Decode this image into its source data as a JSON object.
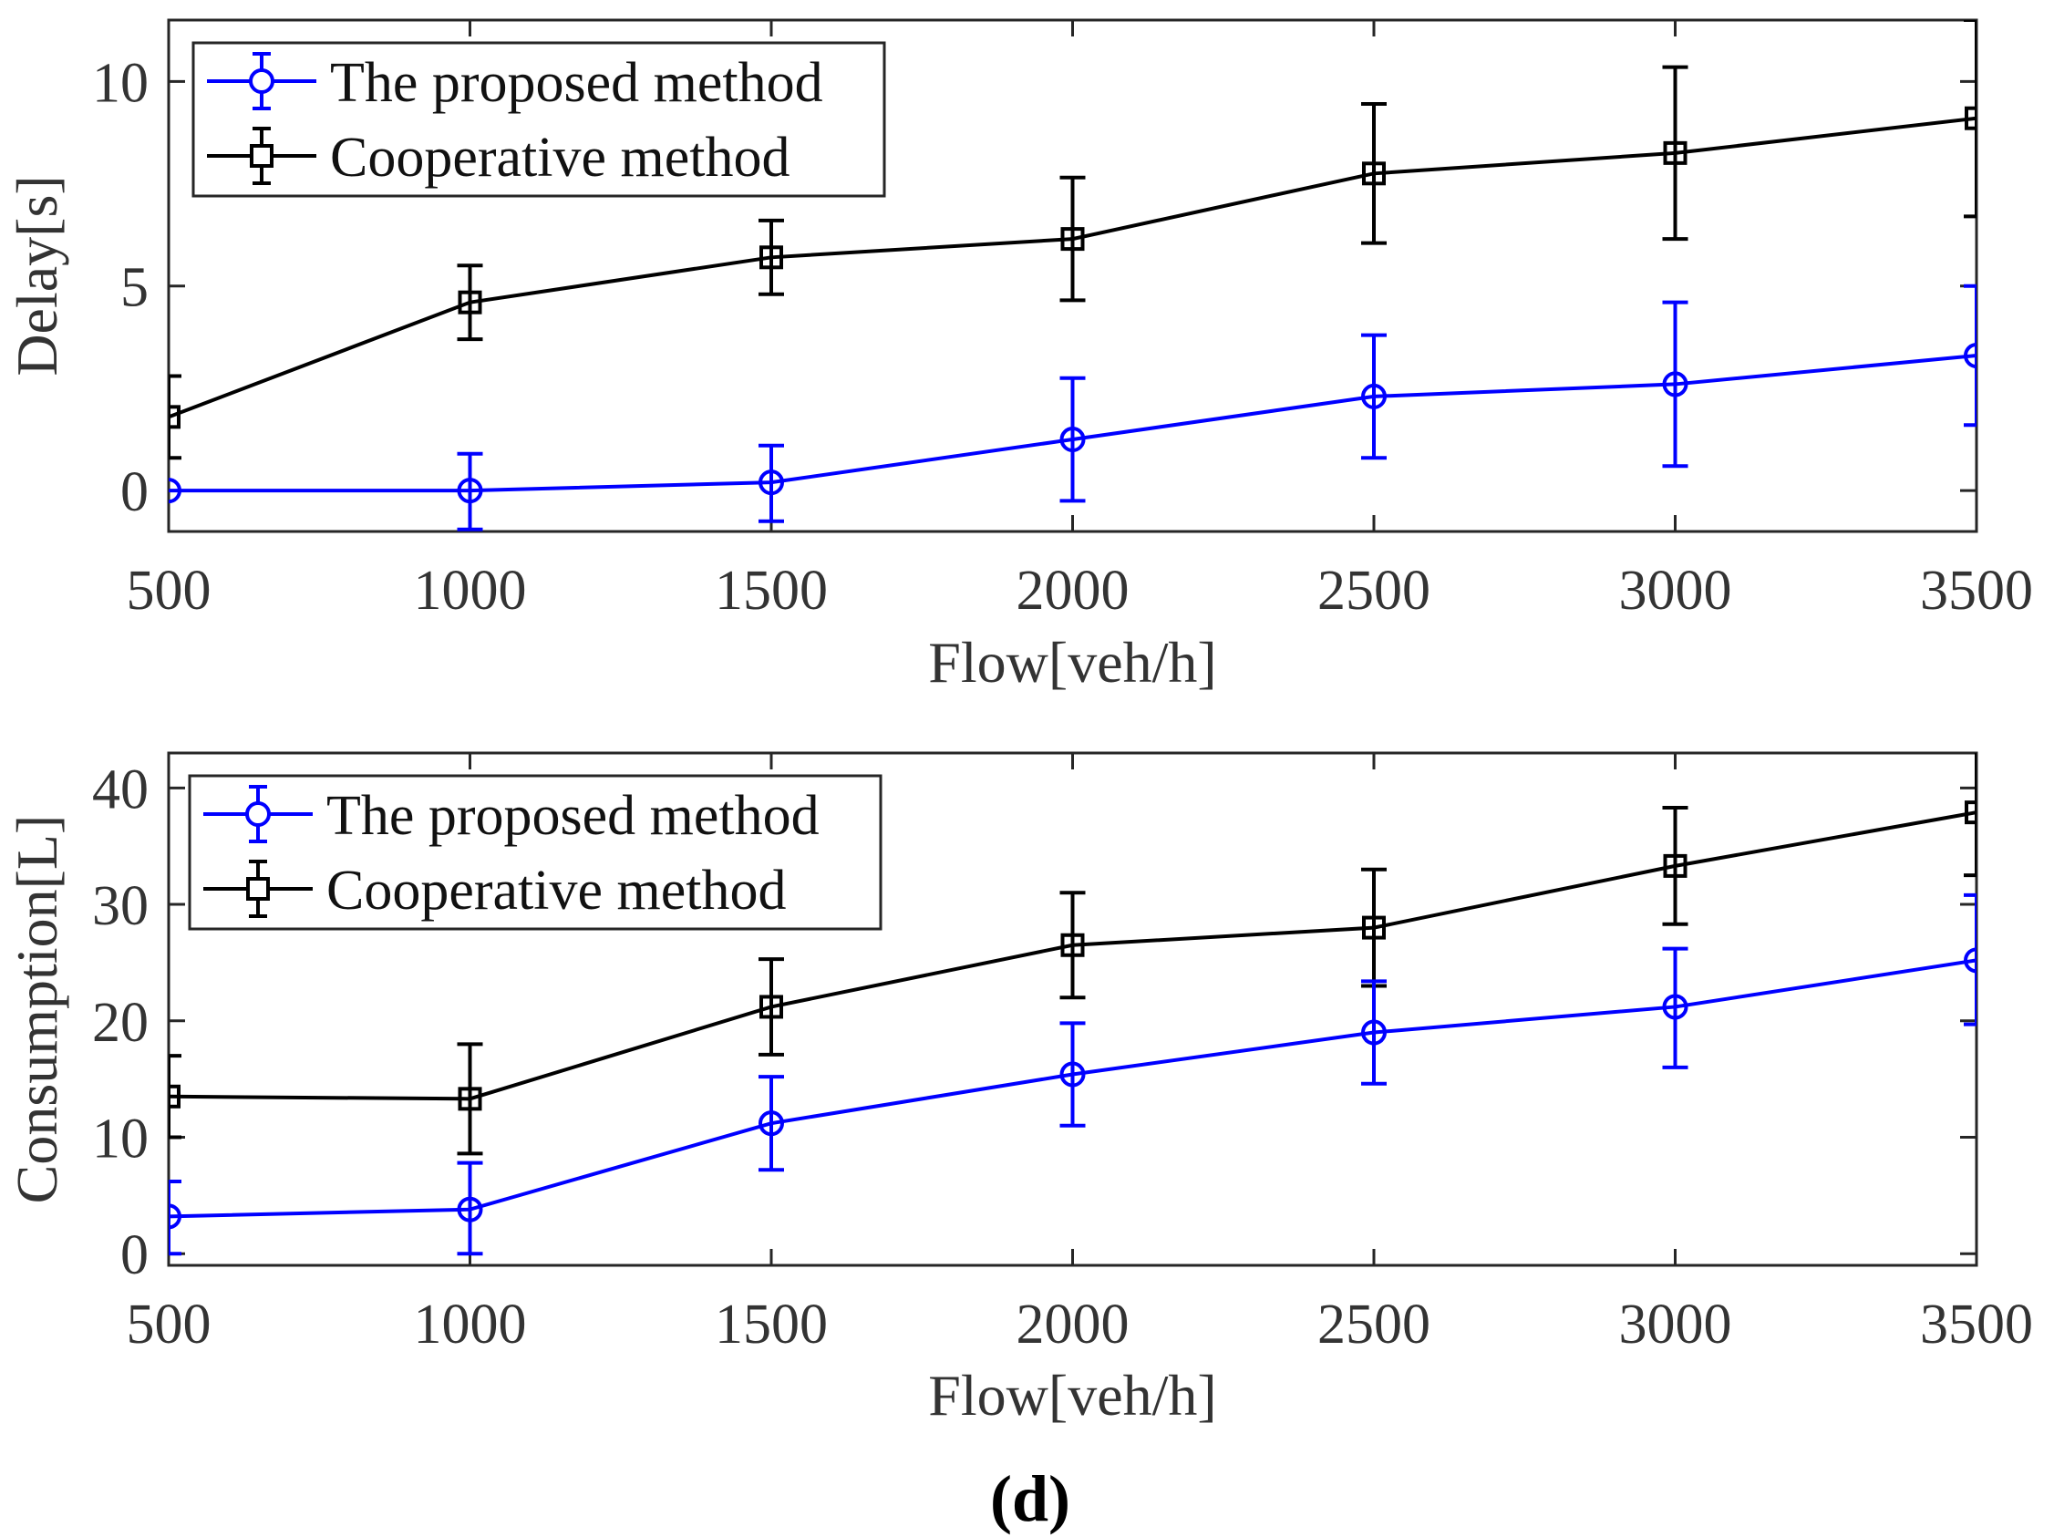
{
  "figure_label": "(d)",
  "colors": {
    "proposed": "#0000ff",
    "cooperative": "#000000",
    "axis": "#262626",
    "text": "#333333"
  },
  "chart_data": [
    {
      "type": "line",
      "error_bars": true,
      "xlabel": "Flow[veh/h]",
      "ylabel": "Delay[s]",
      "xlim": [
        500,
        3500
      ],
      "ylim": [
        -1,
        11.5
      ],
      "xticks": [
        500,
        1000,
        1500,
        2000,
        2500,
        3000,
        3500
      ],
      "xtick_labels": [
        "500",
        "1000",
        "1500",
        "2000",
        "2500",
        "3000",
        "3500"
      ],
      "yticks": [
        0,
        5,
        10
      ],
      "ytick_labels": [
        "0",
        "5",
        "10"
      ],
      "legend_position": "top-left",
      "x": [
        500,
        1000,
        1500,
        2000,
        2500,
        3000,
        3500
      ],
      "series": [
        {
          "name": "The proposed method",
          "key": "proposed",
          "marker": "circle",
          "values": [
            0,
            0,
            0.2,
            1.25,
            2.3,
            2.6,
            3.3
          ],
          "error_low": [
            0,
            0.95,
            0.95,
            1.5,
            1.5,
            2.0,
            1.7
          ],
          "error_high": [
            0,
            0.9,
            0.9,
            1.5,
            1.5,
            2.0,
            1.7
          ]
        },
        {
          "name": "Cooperative method",
          "key": "cooperative",
          "marker": "square",
          "values": [
            1.8,
            4.6,
            5.7,
            6.15,
            7.75,
            8.25,
            9.1
          ],
          "error_low": [
            1.0,
            0.9,
            0.9,
            1.5,
            1.7,
            2.1,
            2.4
          ],
          "error_high": [
            1.0,
            0.9,
            0.9,
            1.5,
            1.7,
            2.1,
            2.4
          ]
        }
      ]
    },
    {
      "type": "line",
      "error_bars": true,
      "xlabel": "Flow[veh/h]",
      "ylabel": "Consumption[L]",
      "xlim": [
        500,
        3500
      ],
      "ylim": [
        -1,
        43
      ],
      "xticks": [
        500,
        1000,
        1500,
        2000,
        2500,
        3000,
        3500
      ],
      "xtick_labels": [
        "500",
        "1000",
        "1500",
        "2000",
        "2500",
        "3000",
        "3500"
      ],
      "yticks": [
        0,
        10,
        20,
        30,
        40
      ],
      "ytick_labels": [
        "0",
        "10",
        "20",
        "30",
        "40"
      ],
      "legend_position": "top-left",
      "x": [
        500,
        1000,
        1500,
        2000,
        2500,
        3000,
        3500
      ],
      "series": [
        {
          "name": "The proposed method",
          "key": "proposed",
          "marker": "circle",
          "values": [
            3.2,
            3.8,
            11.2,
            15.4,
            19.0,
            21.2,
            25.2
          ],
          "error_low": [
            3.2,
            3.8,
            4.0,
            4.4,
            4.4,
            5.2,
            5.5
          ],
          "error_high": [
            3.0,
            4.0,
            4.0,
            4.4,
            4.4,
            5.0,
            5.6
          ]
        },
        {
          "name": "Cooperative method",
          "key": "cooperative",
          "marker": "square",
          "values": [
            13.5,
            13.3,
            21.2,
            26.5,
            28.0,
            33.3,
            37.9
          ],
          "error_low": [
            3.5,
            4.7,
            4.1,
            4.5,
            5.0,
            5.0,
            5.4
          ],
          "error_high": [
            3.5,
            4.7,
            4.1,
            4.5,
            5.0,
            5.0,
            5.4
          ]
        }
      ]
    }
  ]
}
